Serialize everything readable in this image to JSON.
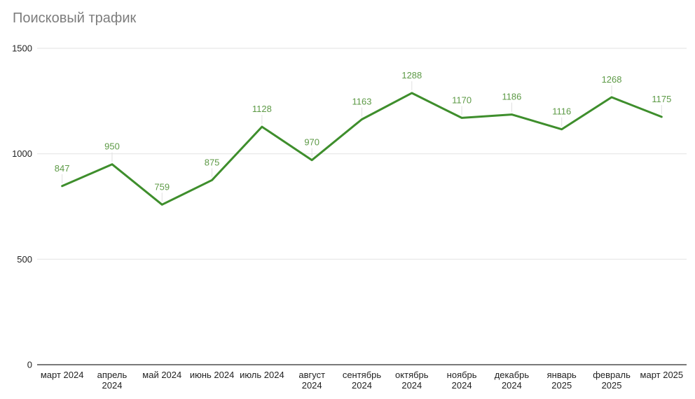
{
  "header": {
    "title": "Поисковый трафик"
  },
  "chart_data": {
    "type": "line",
    "title": "Поисковый трафик",
    "categories": [
      "март 2024",
      "апрель 2024",
      "май 2024",
      "июнь 2024",
      "июль 2024",
      "август 2024",
      "сентябрь 2024",
      "октябрь 2024",
      "ноябрь 2024",
      "декабрь 2024",
      "январь 2025",
      "февраль 2025",
      "март 2025"
    ],
    "category_tick_lines": [
      [
        "март 2024"
      ],
      [
        "апрель",
        "2024"
      ],
      [
        "май 2024"
      ],
      [
        "июнь 2024"
      ],
      [
        "июль 2024"
      ],
      [
        "август",
        "2024"
      ],
      [
        "сентябрь",
        "2024"
      ],
      [
        "октябрь",
        "2024"
      ],
      [
        "ноябрь",
        "2024"
      ],
      [
        "декабрь",
        "2024"
      ],
      [
        "январь",
        "2025"
      ],
      [
        "февраль",
        "2025"
      ],
      [
        "март 2025"
      ]
    ],
    "values": [
      847,
      950,
      759,
      875,
      1128,
      970,
      1163,
      1288,
      1170,
      1186,
      1116,
      1268,
      1175
    ],
    "xlabel": "",
    "ylabel": "",
    "ylim": [
      0,
      1500
    ],
    "yticks": [
      0,
      500,
      1000,
      1500
    ],
    "grid": true,
    "legend": "none",
    "point_markers": false,
    "colors": {
      "line": "#3e8e2c",
      "value_label": "#5d9a46",
      "gridline": "#e6e6e6",
      "baseline": "#666666",
      "axis_text": "#222222",
      "title": "#7d7d7d",
      "leader_tick": "#e0e0e0"
    }
  }
}
